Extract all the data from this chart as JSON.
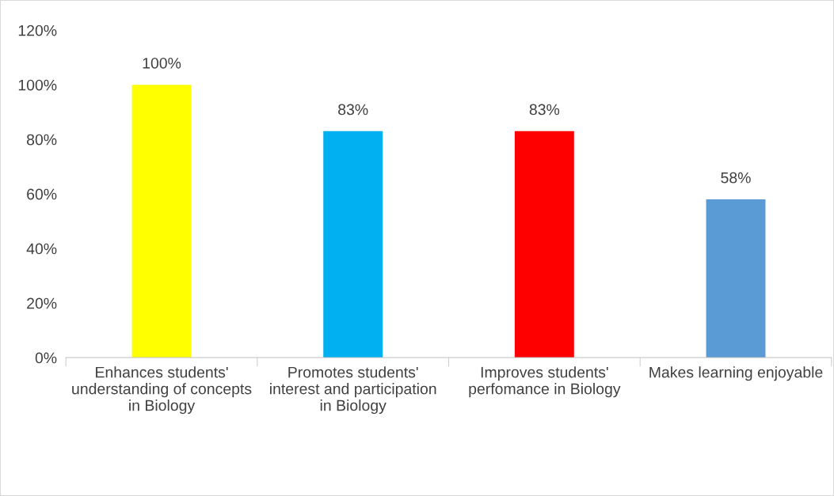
{
  "chart_data": {
    "type": "bar",
    "categories": [
      "Enhances students'\nunderstanding of concepts\nin Biology",
      "Promotes students'\ninterest and participation\nin Biology",
      "Improves students'\nperfomance in Biology",
      "Makes learning enjoyable"
    ],
    "values": [
      100,
      83,
      83,
      58
    ],
    "colors": [
      "#ffff00",
      "#00b0f0",
      "#ff0000",
      "#5b9bd5"
    ],
    "value_labels": [
      "100%",
      "83%",
      "83%",
      "58%"
    ],
    "ylim": [
      0,
      120
    ],
    "yticks": [
      {
        "value": 0,
        "label": "0%"
      },
      {
        "value": 20,
        "label": "20%"
      },
      {
        "value": 40,
        "label": "40%"
      },
      {
        "value": 60,
        "label": "60%"
      },
      {
        "value": 80,
        "label": "80%"
      },
      {
        "value": 100,
        "label": "100%"
      },
      {
        "value": 120,
        "label": "120%"
      }
    ],
    "grid": false
  }
}
